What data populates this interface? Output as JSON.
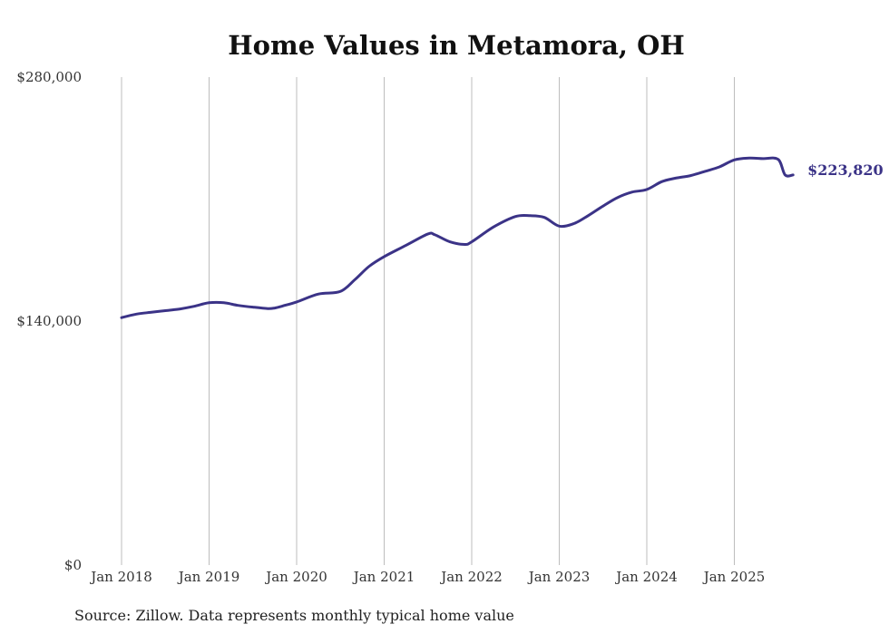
{
  "chart_data": {
    "type": "line",
    "title": "Home Values in Metamora, OH",
    "xlabel": "",
    "ylabel": "",
    "ylim": [
      0,
      280000
    ],
    "y_ticks": [
      {
        "value": 0,
        "label": "$0"
      },
      {
        "value": 140000,
        "label": "$140,000"
      },
      {
        "value": 280000,
        "label": "$280,000"
      }
    ],
    "x_ticks": [
      {
        "value": 2018.0,
        "label": "Jan 2018"
      },
      {
        "value": 2019.0,
        "label": "Jan 2019"
      },
      {
        "value": 2020.0,
        "label": "Jan 2020"
      },
      {
        "value": 2021.0,
        "label": "Jan 2021"
      },
      {
        "value": 2022.0,
        "label": "Jan 2022"
      },
      {
        "value": 2023.0,
        "label": "Jan 2023"
      },
      {
        "value": 2024.0,
        "label": "Jan 2024"
      },
      {
        "value": 2025.0,
        "label": "Jan 2025"
      }
    ],
    "xlim": [
      2018.0,
      2025.8
    ],
    "grid": "vertical",
    "series": [
      {
        "name": "Typical home value",
        "color": "#3b3387",
        "x": [
          2018.0,
          2018.17,
          2018.33,
          2018.5,
          2018.67,
          2018.83,
          2019.0,
          2019.17,
          2019.33,
          2019.5,
          2019.67,
          2019.75,
          2019.83,
          2020.0,
          2020.25,
          2020.5,
          2020.67,
          2020.83,
          2021.0,
          2021.25,
          2021.5,
          2021.58,
          2021.75,
          2021.92,
          2022.0,
          2022.25,
          2022.5,
          2022.67,
          2022.83,
          2023.0,
          2023.17,
          2023.33,
          2023.5,
          2023.67,
          2023.83,
          2024.0,
          2024.17,
          2024.33,
          2024.5,
          2024.67,
          2024.83,
          2025.0,
          2025.17,
          2025.33,
          2025.5,
          2025.58,
          2025.67
        ],
        "values": [
          142000,
          144000,
          145000,
          146000,
          147000,
          148500,
          150500,
          150500,
          149000,
          148000,
          147200,
          147500,
          148500,
          151000,
          155500,
          157000,
          164000,
          171500,
          177000,
          183500,
          190000,
          189500,
          185500,
          184000,
          185500,
          194000,
          200000,
          200500,
          199500,
          194500,
          196000,
          200500,
          206000,
          211000,
          214000,
          215500,
          220000,
          222000,
          223500,
          226000,
          228500,
          232500,
          233500,
          233200,
          232800,
          223820,
          223820
        ],
        "end_label": "$223,820"
      }
    ]
  },
  "footer": {
    "source": "Source: Zillow. Data represents monthly typical home value"
  }
}
